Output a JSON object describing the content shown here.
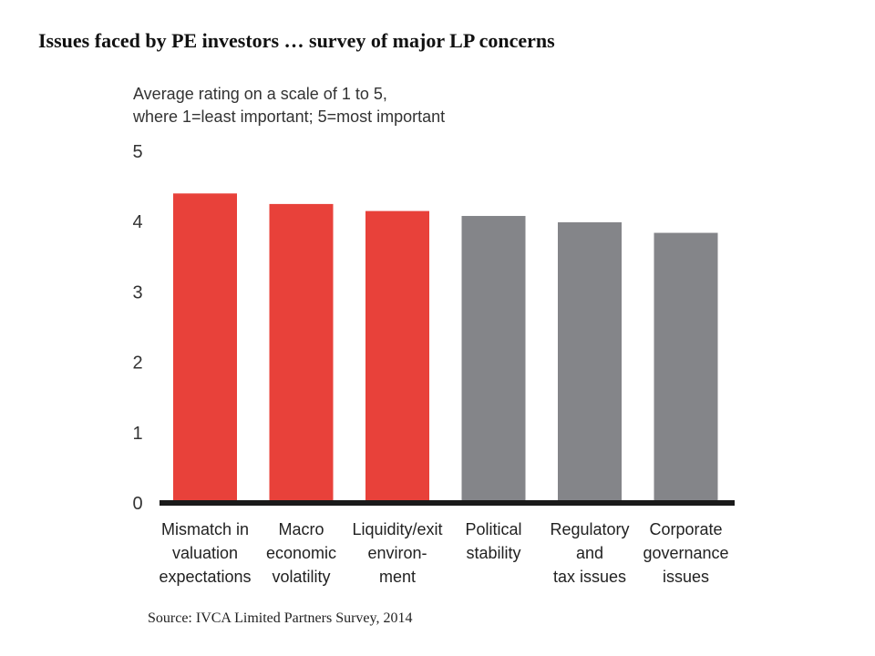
{
  "slide": {
    "title": "Issues faced by PE investors … survey of major LP concerns",
    "source": "Source: IVCA Limited Partners Survey, 2014"
  },
  "chart_data": {
    "type": "bar",
    "subtitle_lines": [
      "Average rating on a scale of 1 to 5,",
      "where 1=least important; 5=most important"
    ],
    "categories": [
      [
        "Mismatch in",
        "valuation",
        "expectations"
      ],
      [
        "Macro",
        "economic",
        "volatility"
      ],
      [
        "Liquidity/exit",
        "environ-",
        "ment"
      ],
      [
        "Political",
        "stability"
      ],
      [
        "Regulatory",
        "and",
        "tax issues"
      ],
      [
        "Corporate",
        "governance",
        "issues"
      ]
    ],
    "values": [
      4.4,
      4.25,
      4.15,
      4.08,
      3.99,
      3.84
    ],
    "colors": [
      "#e8413a",
      "#e8413a",
      "#e8413a",
      "#848589",
      "#848589",
      "#848589"
    ],
    "yticks": [
      "0",
      "1",
      "2",
      "3",
      "4",
      "5"
    ],
    "ylim": [
      0,
      5
    ],
    "grid": false,
    "legend": "none"
  }
}
